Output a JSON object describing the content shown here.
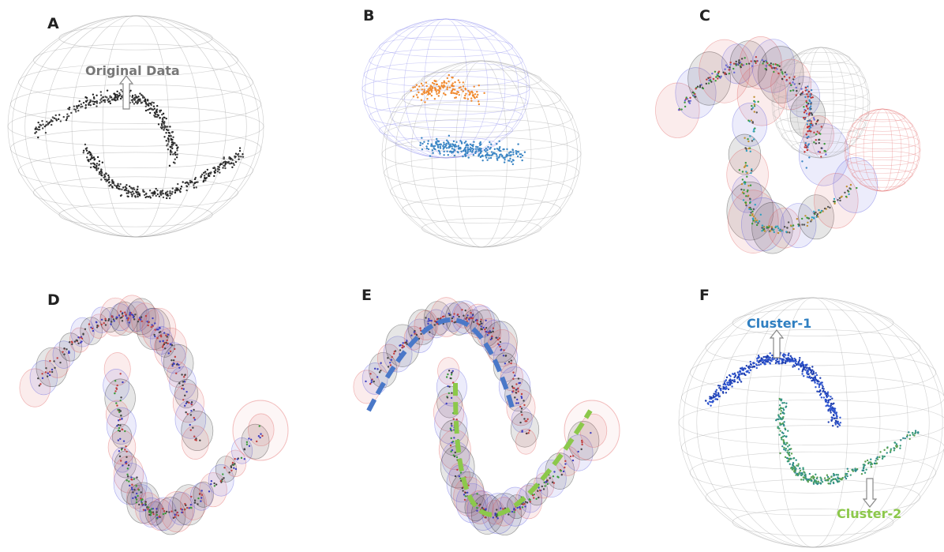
{
  "panels": [
    {
      "label": "A",
      "annotation": "Original Data"
    },
    {
      "label": "B"
    },
    {
      "label": "C"
    },
    {
      "label": "D"
    },
    {
      "label": "E"
    },
    {
      "label": "F",
      "annotations": [
        "Cluster-1",
        "Cluster-2"
      ]
    }
  ]
}
